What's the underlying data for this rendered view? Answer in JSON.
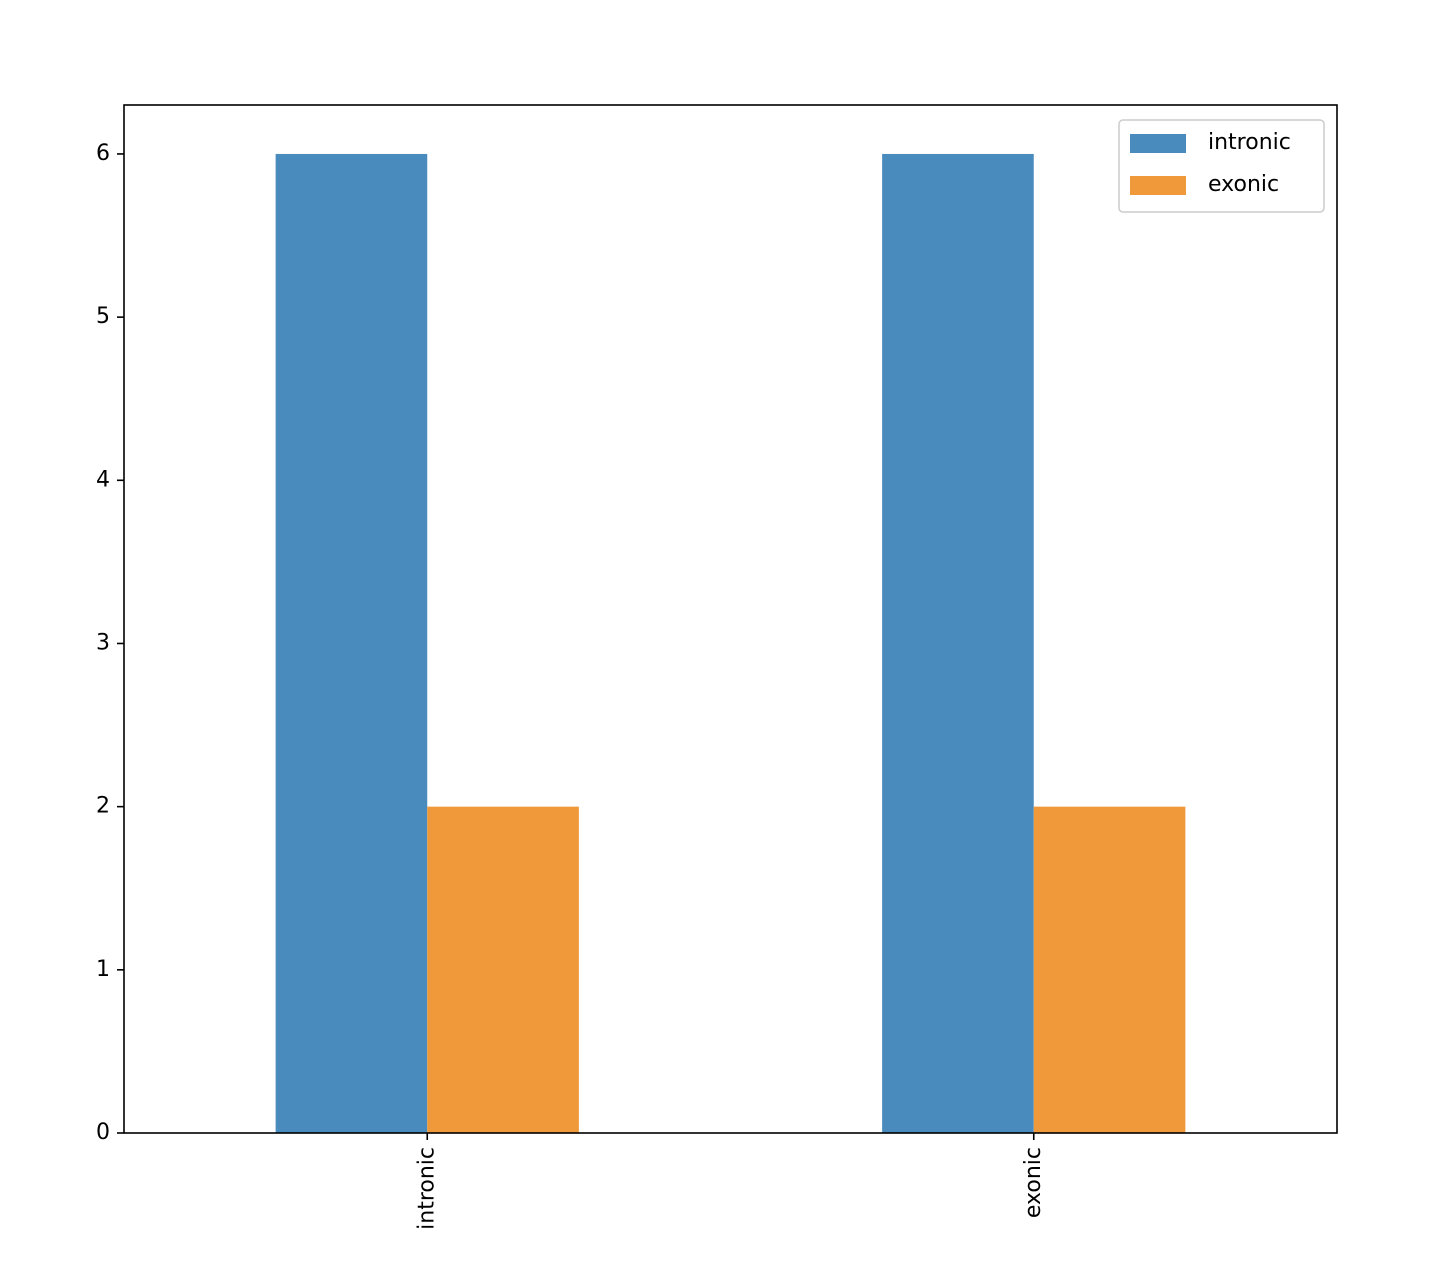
{
  "chart_data": {
    "type": "bar",
    "categories": [
      "intronic",
      "exonic"
    ],
    "series": [
      {
        "name": "intronic",
        "color": "#4a8bbd",
        "values": [
          6,
          6
        ]
      },
      {
        "name": "exonic",
        "color": "#f0993a",
        "values": [
          2,
          2
        ]
      }
    ],
    "ylim": [
      0,
      6.3
    ],
    "yticks": [
      0,
      1,
      2,
      3,
      4,
      5,
      6
    ],
    "legend": "upper right",
    "x_label_rotation": 90
  }
}
